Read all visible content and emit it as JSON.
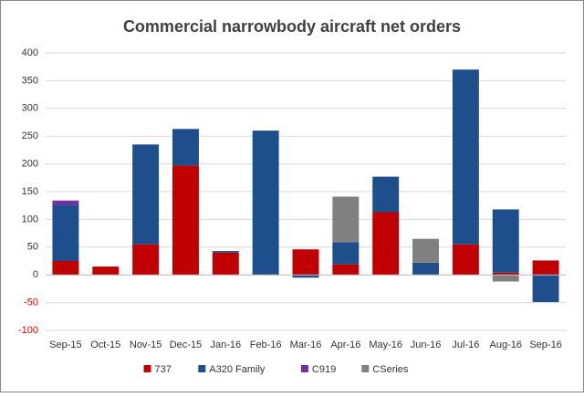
{
  "chart_data": {
    "type": "stacked-bar",
    "title": "Commercial narrowbody  aircraft net orders",
    "categories": [
      "Sep-15",
      "Oct-15",
      "Nov-15",
      "Dec-15",
      "Jan-16",
      "Feb-16",
      "Mar-16",
      "Apr-16",
      "May-16",
      "Jun-16",
      "Jul-16",
      "Aug-16",
      "Sep-16"
    ],
    "series": [
      {
        "name": "737",
        "color": "#c00000",
        "values": [
          25,
          15,
          55,
          197,
          40,
          0,
          46,
          19,
          113,
          0,
          55,
          4,
          26
        ]
      },
      {
        "name": "A320 Family",
        "color": "#1f4e8c",
        "values": [
          101,
          0,
          180,
          66,
          3,
          260,
          -5,
          40,
          64,
          22,
          315,
          114,
          -49
        ]
      },
      {
        "name": "C919",
        "color": "#7030a0",
        "values": [
          8,
          0,
          0,
          0,
          0,
          0,
          0,
          0,
          0,
          0,
          0,
          0,
          0
        ]
      },
      {
        "name": "CSeries",
        "color": "#808080",
        "values": [
          0,
          0,
          0,
          0,
          0,
          0,
          0,
          82,
          0,
          43,
          0,
          -12,
          0
        ]
      }
    ],
    "ylim": [
      -100,
      400
    ],
    "yticks": [
      -100,
      -50,
      0,
      50,
      100,
      150,
      200,
      250,
      300,
      350,
      400
    ],
    "grid": true,
    "legend": "bottom"
  }
}
